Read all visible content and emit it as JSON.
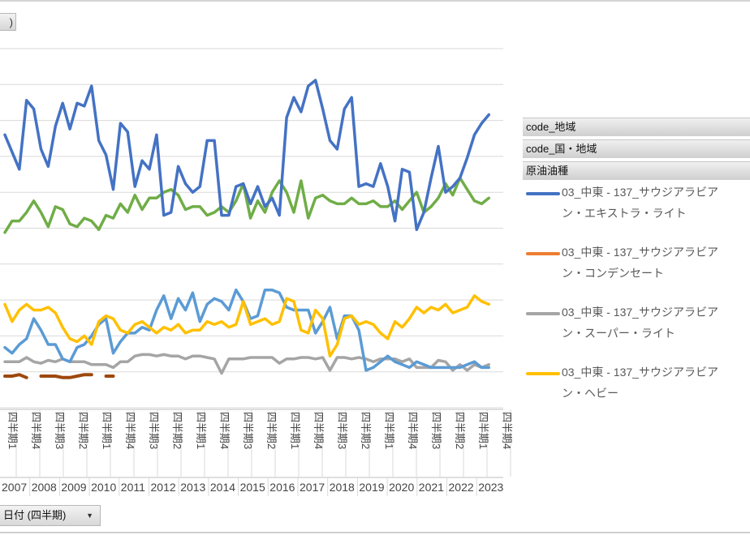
{
  "value_button_label": ")",
  "date_button_label": "日付 (四半期)",
  "field_buttons": [
    "code_地域",
    "code_国・地域",
    "原油油種"
  ],
  "legend": [
    {
      "line1": "03_中東 - 137_サウジアラビア",
      "line2": "ン・エキストラ・ライト",
      "color": "#4472c4"
    },
    {
      "line1": "03_中東 - 137_サウジアラビア",
      "line2": "ン・コンデンセート",
      "color": "#ed7d31"
    },
    {
      "line1": "03_中東 - 137_サウジアラビア",
      "line2": "ン・スーパー・ライト",
      "color": "#a5a5a5"
    },
    {
      "line1": "03_中東 - 137_サウジアラビア",
      "line2": "ン・ヘビー",
      "color": "#ffc000"
    }
  ],
  "chart_data": {
    "type": "line",
    "title": "",
    "xlabel": "",
    "ylabel": "",
    "grid": true,
    "legend_position": "right",
    "quarter_label": "四半期",
    "x": [
      "2007Q1",
      "2007Q2",
      "2007Q3",
      "2007Q4",
      "2008Q1",
      "2008Q2",
      "2008Q3",
      "2008Q4",
      "2009Q1",
      "2009Q2",
      "2009Q3",
      "2009Q4",
      "2010Q1",
      "2010Q2",
      "2010Q3",
      "2010Q4",
      "2011Q1",
      "2011Q2",
      "2011Q3",
      "2011Q4",
      "2012Q1",
      "2012Q2",
      "2012Q3",
      "2012Q4",
      "2013Q1",
      "2013Q2",
      "2013Q3",
      "2013Q4",
      "2014Q1",
      "2014Q2",
      "2014Q3",
      "2014Q4",
      "2015Q1",
      "2015Q2",
      "2015Q3",
      "2015Q4",
      "2016Q1",
      "2016Q2",
      "2016Q3",
      "2016Q4",
      "2017Q1",
      "2017Q2",
      "2017Q3",
      "2017Q4",
      "2018Q1",
      "2018Q2",
      "2018Q3",
      "2018Q4",
      "2019Q1",
      "2019Q2",
      "2019Q3",
      "2019Q4",
      "2020Q1",
      "2020Q2",
      "2020Q3",
      "2020Q4",
      "2021Q1",
      "2021Q2",
      "2021Q3",
      "2021Q4",
      "2022Q1",
      "2022Q2",
      "2022Q3",
      "2022Q4",
      "2023Q1",
      "2023Q2",
      "2023Q3",
      "2023Q4"
    ],
    "tick_labels": [
      "四半期1",
      "四半期4",
      "四半期3",
      "四半期2",
      "四半期1",
      "四半期4",
      "四半期3",
      "四半期2",
      "四半期1",
      "四半期4",
      "四半期3",
      "四半期2",
      "四半期1",
      "四半期4",
      "四半期3",
      "四半期2",
      "四半期1",
      "四半期4",
      "四半期3",
      "四半期2",
      "四半期1",
      "四半期4"
    ],
    "years": [
      "2007",
      "2008",
      "2009",
      "2010",
      "2011",
      "2012",
      "2013",
      "2014",
      "2015",
      "2016",
      "2017",
      "2018",
      "2019",
      "2020",
      "2021",
      "2022",
      "2023"
    ],
    "ylim": [
      0,
      125
    ],
    "series": [
      {
        "name": "03_中東 - 137_サウジアラビアン・エキストラ・ライト",
        "color": "#4472c4",
        "values": [
          95,
          89,
          83,
          107,
          104,
          90,
          84,
          98,
          106,
          97,
          106,
          105,
          112,
          93,
          88,
          76,
          99,
          96,
          77,
          86,
          83,
          95,
          67,
          68,
          84,
          78,
          75,
          77,
          93,
          93,
          67,
          67,
          77,
          78,
          71,
          77,
          70,
          73,
          67,
          101,
          108,
          103,
          112,
          114,
          104,
          93,
          90,
          104,
          108,
          77,
          78,
          77,
          85,
          77,
          65,
          83,
          82,
          62,
          68,
          80,
          91,
          75,
          77,
          80,
          87,
          95,
          99,
          102
        ]
      },
      {
        "name": "03_中東 - 137_サウジアラビアン・コンデンセート",
        "color": "#ed7d31",
        "values": [
          11,
          11,
          11.5,
          10.5,
          null,
          11,
          11,
          11,
          10.5,
          10.5,
          11,
          11.5,
          11.5,
          null,
          11,
          11,
          null,
          null,
          null,
          null,
          null,
          null,
          null,
          null,
          null,
          null,
          null,
          null,
          null,
          null,
          null,
          null,
          null,
          null,
          null,
          null,
          null,
          null,
          null,
          null,
          null,
          null,
          null,
          null,
          null,
          null,
          null,
          null,
          null,
          null,
          null,
          null,
          null,
          null,
          null,
          null,
          null,
          null,
          null,
          null,
          null,
          null,
          null,
          null,
          null,
          null,
          null,
          null
        ]
      },
      {
        "name": "03_中東 - 137_サウジアラビアン・スーパー・ライト",
        "color": "#a5a5a5",
        "values": [
          16,
          16,
          16,
          17.5,
          16,
          15.5,
          16.5,
          16,
          17,
          16,
          16,
          16,
          15,
          15,
          15,
          14,
          16,
          16,
          18,
          18.5,
          18.5,
          18,
          18.5,
          18,
          18,
          17,
          18,
          18,
          17.5,
          17,
          12,
          17,
          17,
          17,
          17.5,
          17.5,
          17.5,
          17.5,
          15.5,
          17,
          17,
          17.5,
          17.5,
          17,
          17.5,
          13,
          17.5,
          17.5,
          17,
          17.5,
          17,
          16,
          17,
          17,
          17,
          16,
          17,
          14,
          14,
          14,
          16.5,
          16,
          13,
          15,
          13,
          15,
          14,
          15
        ]
      },
      {
        "name": "03_中東 - 137_サウジアラビアン・ヘビー",
        "color": "#ffc000",
        "values": [
          36,
          30,
          34,
          36,
          34,
          34,
          35,
          33,
          28,
          24,
          23,
          25,
          22,
          30,
          32,
          31,
          27,
          26,
          29,
          30,
          28,
          26,
          28,
          27,
          29,
          26,
          27,
          27,
          30,
          29,
          30,
          28,
          29,
          37,
          29,
          30,
          31,
          29,
          30,
          38,
          37,
          27,
          26,
          34,
          31,
          18,
          22,
          31,
          32,
          29,
          30,
          29,
          26,
          24,
          30,
          28,
          31,
          35,
          33,
          35,
          34,
          36,
          33,
          34,
          35,
          39,
          37,
          36
        ]
      },
      {
        "name": "",
        "color": "#5b9bd5",
        "values": [
          21,
          19,
          22,
          24,
          31,
          27,
          22,
          22,
          17,
          16,
          21,
          22,
          25,
          29,
          31,
          19,
          23,
          26,
          26,
          28,
          27,
          34,
          39,
          31,
          38,
          34,
          40,
          30,
          36,
          38,
          37,
          34,
          41,
          37,
          31,
          32,
          41,
          41,
          40,
          35,
          34,
          34,
          34,
          26,
          30,
          35,
          24,
          32,
          32,
          27,
          13,
          14,
          16,
          18,
          16,
          15,
          14,
          16,
          15,
          14,
          14,
          14,
          14,
          14,
          15,
          16,
          14,
          14
        ]
      },
      {
        "name": "",
        "color": "#70ad47",
        "values": [
          61,
          65,
          65,
          68,
          72,
          68,
          63,
          70,
          69,
          64,
          63,
          66,
          65,
          62,
          67,
          66,
          71,
          68,
          74,
          69,
          73,
          73,
          75,
          76,
          74,
          69,
          70,
          70,
          67,
          68,
          70,
          68,
          72,
          78,
          66,
          72,
          68,
          75,
          79,
          75,
          68,
          79,
          66,
          73,
          74,
          72,
          71,
          71,
          73,
          71,
          71,
          72,
          70,
          70,
          72,
          69,
          72,
          75,
          68,
          70,
          73,
          78,
          74,
          80,
          76,
          72,
          71,
          73
        ]
      }
    ]
  }
}
